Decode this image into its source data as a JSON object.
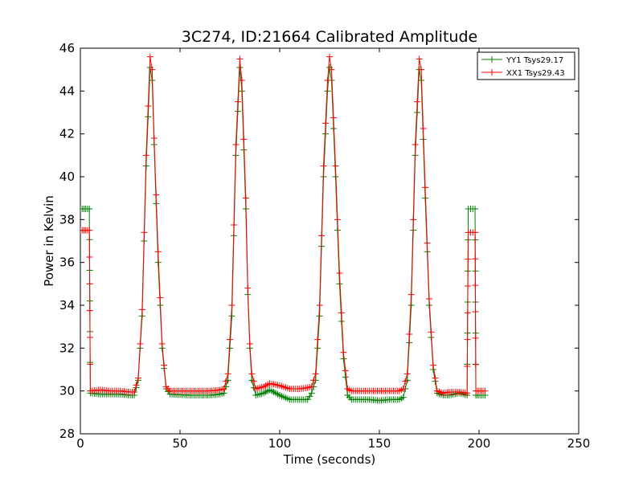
{
  "chart_data": {
    "type": "line",
    "title": "3C274, ID:21664 Calibrated Amplitude",
    "xlabel": "Time (seconds)",
    "ylabel": "Power in Kelvin",
    "xlim": [
      0,
      250
    ],
    "ylim": [
      28,
      46
    ],
    "xticks": [
      0,
      50,
      100,
      150,
      200,
      250
    ],
    "yticks": [
      28,
      30,
      32,
      34,
      36,
      38,
      40,
      42,
      44,
      46
    ],
    "grid": false,
    "legend_position": "top-right",
    "marker": "+",
    "series": [
      {
        "name": "YY1 Tsys29.17",
        "color": "#008000",
        "points": [
          [
            0,
            38.5
          ],
          [
            4.5,
            38.5
          ],
          [
            5,
            29.9
          ],
          [
            10,
            29.85
          ],
          [
            15,
            29.85
          ],
          [
            20,
            29.85
          ],
          [
            25,
            29.8
          ],
          [
            27,
            29.8
          ],
          [
            29,
            30.5
          ],
          [
            31,
            33.5
          ],
          [
            33,
            40.5
          ],
          [
            35,
            45.1
          ],
          [
            36,
            44.5
          ],
          [
            37,
            41.5
          ],
          [
            39,
            36
          ],
          [
            41,
            32
          ],
          [
            43,
            30.1
          ],
          [
            45,
            29.85
          ],
          [
            55,
            29.8
          ],
          [
            65,
            29.8
          ],
          [
            70,
            29.85
          ],
          [
            72,
            29.9
          ],
          [
            74,
            30.5
          ],
          [
            76,
            33.5
          ],
          [
            78,
            41
          ],
          [
            80,
            45.1
          ],
          [
            81,
            44
          ],
          [
            83,
            38.5
          ],
          [
            84,
            34.5
          ],
          [
            85,
            32
          ],
          [
            86,
            30.5
          ],
          [
            88,
            29.8
          ],
          [
            92,
            29.9
          ],
          [
            95,
            30.05
          ],
          [
            100,
            29.8
          ],
          [
            105,
            29.6
          ],
          [
            110,
            29.6
          ],
          [
            114,
            29.6
          ],
          [
            116,
            29.9
          ],
          [
            118,
            30.5
          ],
          [
            120,
            33.5
          ],
          [
            122,
            40
          ],
          [
            124,
            44
          ],
          [
            125,
            45.1
          ],
          [
            126,
            44.5
          ],
          [
            128,
            40
          ],
          [
            130,
            35
          ],
          [
            132,
            31.5
          ],
          [
            134,
            29.8
          ],
          [
            136,
            29.6
          ],
          [
            145,
            29.6
          ],
          [
            150,
            29.55
          ],
          [
            155,
            29.6
          ],
          [
            160,
            29.6
          ],
          [
            162,
            29.7
          ],
          [
            164,
            30.5
          ],
          [
            166,
            34
          ],
          [
            168,
            41
          ],
          [
            170,
            45
          ],
          [
            171,
            44.5
          ],
          [
            173,
            39
          ],
          [
            175,
            34
          ],
          [
            177,
            31
          ],
          [
            179,
            29.9
          ],
          [
            182,
            29.8
          ],
          [
            185,
            29.8
          ],
          [
            190,
            29.9
          ],
          [
            194,
            29.8
          ],
          [
            194.6,
            38.5
          ],
          [
            198,
            38.5
          ],
          [
            198.4,
            29.8
          ],
          [
            200,
            29.8
          ],
          [
            203,
            29.8
          ]
        ]
      },
      {
        "name": "XX1 Tsys29.43",
        "color": "#ff0000",
        "points": [
          [
            0,
            37.5
          ],
          [
            4.5,
            37.5
          ],
          [
            5,
            30
          ],
          [
            10,
            30.05
          ],
          [
            15,
            30
          ],
          [
            20,
            30
          ],
          [
            25,
            29.95
          ],
          [
            27,
            29.95
          ],
          [
            29,
            30.6
          ],
          [
            31,
            33.8
          ],
          [
            33,
            41
          ],
          [
            35,
            45.6
          ],
          [
            36,
            45
          ],
          [
            37,
            41.8
          ],
          [
            39,
            36.5
          ],
          [
            41,
            32.2
          ],
          [
            43,
            30.2
          ],
          [
            45,
            30
          ],
          [
            55,
            30
          ],
          [
            65,
            30
          ],
          [
            70,
            30.05
          ],
          [
            72,
            30.1
          ],
          [
            74,
            30.8
          ],
          [
            76,
            34
          ],
          [
            78,
            41.5
          ],
          [
            80,
            45.5
          ],
          [
            81,
            44.5
          ],
          [
            83,
            39
          ],
          [
            84,
            34.8
          ],
          [
            85,
            32.2
          ],
          [
            86,
            30.8
          ],
          [
            88,
            30.1
          ],
          [
            92,
            30.2
          ],
          [
            95,
            30.35
          ],
          [
            100,
            30.25
          ],
          [
            105,
            30.1
          ],
          [
            110,
            30.1
          ],
          [
            114,
            30.15
          ],
          [
            116,
            30.2
          ],
          [
            118,
            30.8
          ],
          [
            120,
            34
          ],
          [
            122,
            40.5
          ],
          [
            124,
            44.5
          ],
          [
            125,
            45.6
          ],
          [
            126,
            45
          ],
          [
            128,
            40.5
          ],
          [
            130,
            35.5
          ],
          [
            132,
            31.8
          ],
          [
            134,
            30.1
          ],
          [
            136,
            30
          ],
          [
            145,
            30
          ],
          [
            150,
            30
          ],
          [
            155,
            30
          ],
          [
            160,
            30
          ],
          [
            162,
            30.1
          ],
          [
            164,
            30.8
          ],
          [
            166,
            34.5
          ],
          [
            168,
            41.5
          ],
          [
            170,
            45.5
          ],
          [
            171,
            45
          ],
          [
            173,
            39.5
          ],
          [
            175,
            34.3
          ],
          [
            177,
            31.2
          ],
          [
            179,
            30
          ],
          [
            182,
            29.9
          ],
          [
            185,
            29.95
          ],
          [
            190,
            29.95
          ],
          [
            194,
            29.9
          ],
          [
            194.6,
            37.4
          ],
          [
            198,
            37.4
          ],
          [
            198.4,
            30
          ],
          [
            200,
            30
          ],
          [
            203,
            30
          ]
        ]
      }
    ]
  }
}
